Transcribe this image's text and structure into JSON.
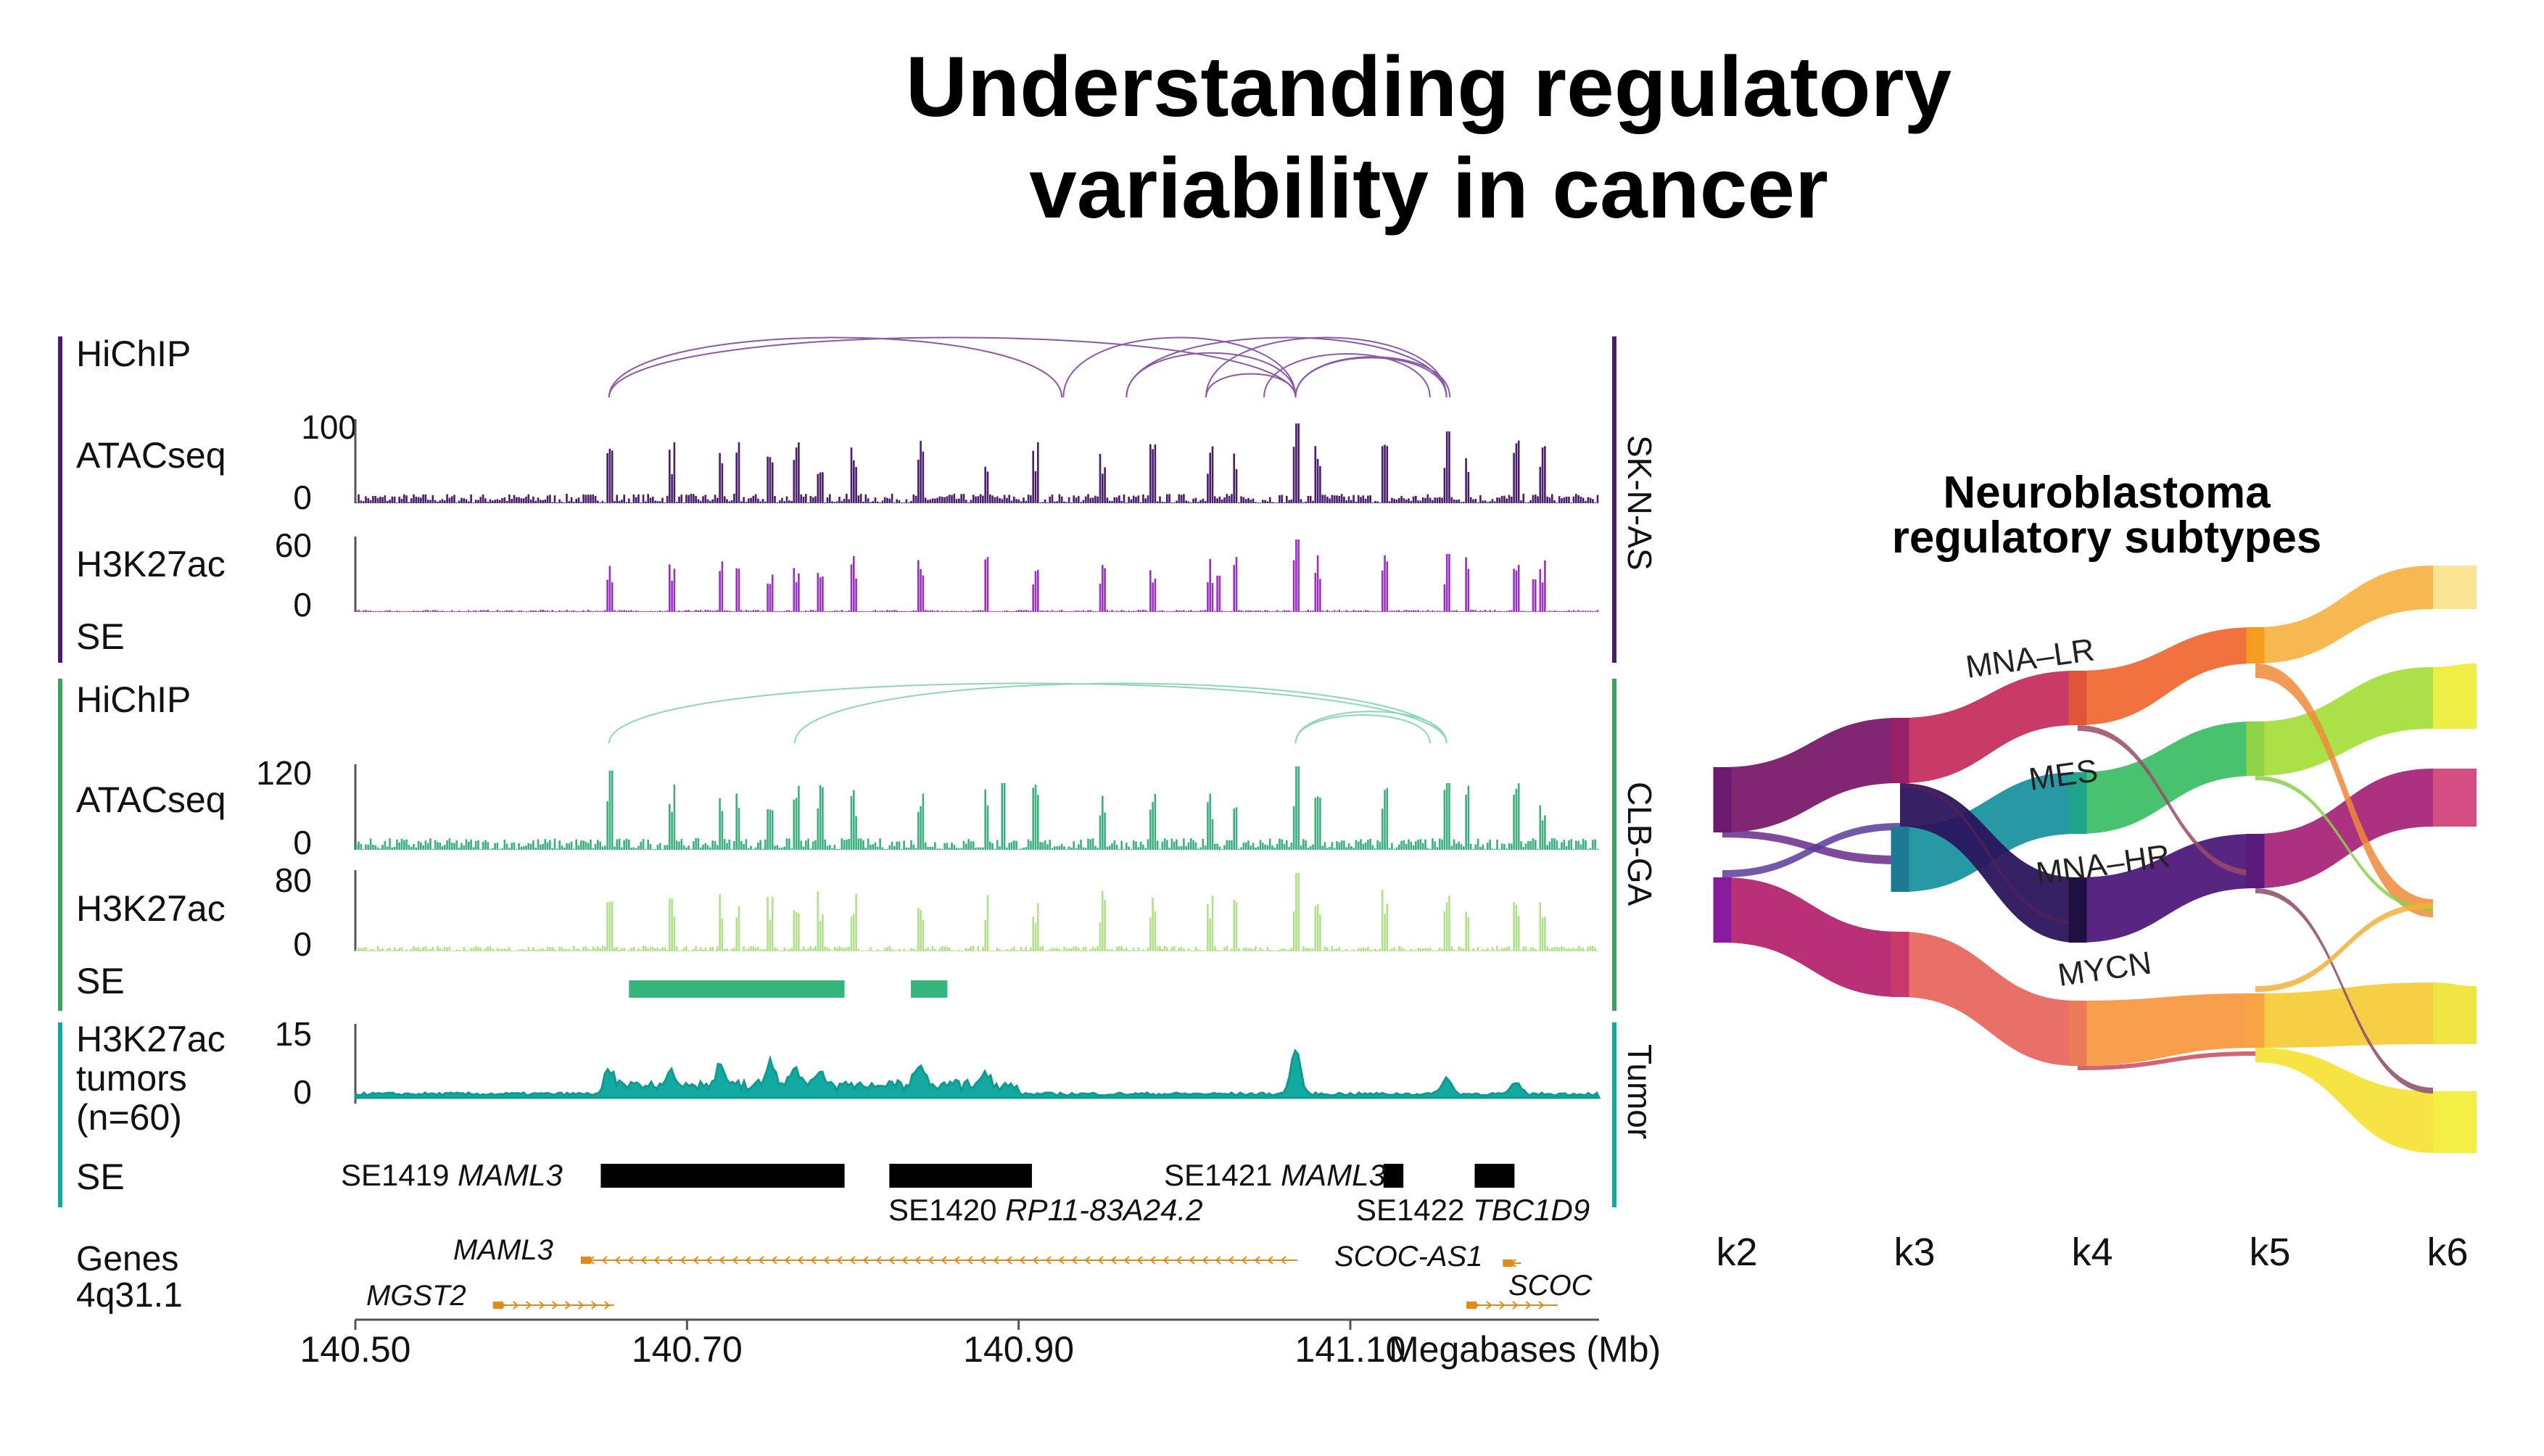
{
  "title": {
    "line1": "Understanding regulatory",
    "line2": "variability in cancer"
  },
  "colors": {
    "skn": "#4b1c6b",
    "skn_h3": "#9a2fc4",
    "clb": "#3bb07e",
    "clb_h3": "#b0e08a",
    "clb_bar": "#2f9e5b",
    "tumor": "#12aaa0",
    "gene": "#e08a1a",
    "axis": "#555555"
  },
  "tracks": {
    "skn": {
      "name": "SK-N-AS",
      "rows": [
        {
          "label": "HiChIP",
          "type": "hichip"
        },
        {
          "label": "ATACseq",
          "type": "atac",
          "max": "100",
          "min": "0"
        },
        {
          "label": "H3K27ac",
          "type": "h3k27ac",
          "max": "60",
          "min": "0"
        },
        {
          "label": "SE",
          "type": "se"
        }
      ]
    },
    "clb": {
      "name": "CLB-GA",
      "rows": [
        {
          "label": "HiChIP",
          "type": "hichip"
        },
        {
          "label": "ATACseq",
          "type": "atac",
          "max": "120",
          "min": "0"
        },
        {
          "label": "H3K27ac",
          "type": "h3k27ac",
          "max": "80",
          "min": "0"
        },
        {
          "label": "SE",
          "type": "se"
        }
      ]
    },
    "tumor": {
      "name": "Tumor",
      "label_line1": "H3K27ac",
      "label_line2": "tumors",
      "label_line3": "(n=60)",
      "max": "15",
      "min": "0",
      "se_label": "SE"
    }
  },
  "clb_se_blocks": [
    {
      "start": 140.665,
      "end": 140.795
    },
    {
      "start": 140.835,
      "end": 140.857
    }
  ],
  "super_enhancers": [
    {
      "id": "SE1419",
      "gene": "MAML3",
      "start": 140.648,
      "end": 140.795
    },
    {
      "id": "SE1420",
      "gene": "RP11-83A24.2",
      "start": 140.822,
      "end": 140.908
    },
    {
      "id": "SE1421",
      "gene": "MAML3",
      "start": 141.12,
      "end": 141.132
    },
    {
      "id": "SE1422",
      "gene": "TBC1D9",
      "start": 141.175,
      "end": 141.199
    }
  ],
  "genes": {
    "label": "Genes",
    "locus": "4q31.1",
    "items": [
      {
        "name": "MAML3",
        "start": 140.636,
        "end": 141.068,
        "strand": "-"
      },
      {
        "name": "MGST2",
        "start": 140.583,
        "end": 140.656,
        "strand": "+"
      },
      {
        "name": "SCOC-AS1",
        "start": 141.192,
        "end": 141.203,
        "strand": "-"
      },
      {
        "name": "SCOC",
        "start": 141.17,
        "end": 141.225,
        "strand": "+"
      }
    ]
  },
  "axis": {
    "min": 140.5,
    "max": 141.25,
    "ticks": [
      "140.50",
      "140.70",
      "140.90",
      "141.10"
    ],
    "unit": "Megabases (Mb)"
  },
  "hichip": {
    "skn": [
      [
        140.653,
        140.926
      ],
      [
        140.653,
        141.067
      ],
      [
        140.927,
        141.067
      ],
      [
        140.965,
        141.067
      ],
      [
        140.965,
        141.158
      ],
      [
        141.013,
        141.158
      ],
      [
        141.067,
        141.158
      ],
      [
        141.067,
        141.16
      ],
      [
        141.048,
        141.148
      ],
      [
        141.013,
        141.067
      ]
    ],
    "clb": [
      [
        140.653,
        141.158
      ],
      [
        140.765,
        141.158
      ],
      [
        141.067,
        141.158
      ],
      [
        141.067,
        141.148
      ]
    ]
  },
  "sankey": {
    "title_line1": "Neuroblastoma",
    "title_line2": "regulatory subtypes",
    "columns": [
      "k2",
      "k3",
      "k4",
      "k5",
      "k6"
    ],
    "labels": [
      "MNA–LR",
      "MES",
      "MNA–HR",
      "MYCN"
    ]
  }
}
